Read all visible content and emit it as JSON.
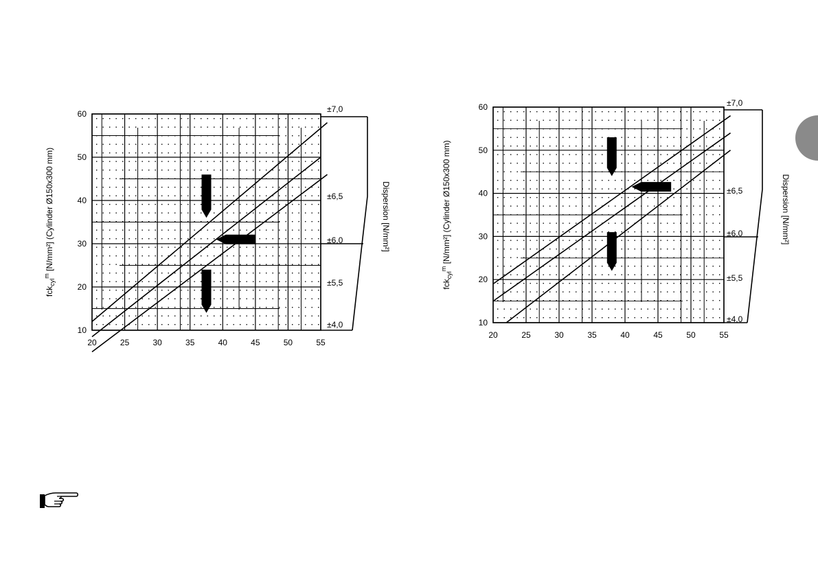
{
  "chart_data": [
    {
      "type": "line",
      "x_ticks": [
        "20",
        "25",
        "30",
        "35",
        "40",
        "45",
        "50",
        "55"
      ],
      "y_ticks": [
        "10",
        "20",
        "30",
        "40",
        "50",
        "60"
      ],
      "xlim": [
        20,
        55
      ],
      "ylim": [
        10,
        60
      ],
      "ylabel": "fckcyl m [N/mm²] (Cylinder Ø150x300 mm)",
      "ylabel_parts": {
        "main": "fck",
        "sub": "cyl",
        "sup": "m",
        "rest": " [N/mm²] (Cylinder Ø150x300 mm)"
      },
      "right_label": "Dispersion [N/mm²]",
      "dispersion_labels": [
        "±7,0",
        "±6,5",
        "±6,0",
        "±5,5",
        "±4,0"
      ],
      "series": [
        {
          "values": [
            [
              20,
              12
            ],
            [
              56,
              58
            ]
          ]
        },
        {
          "values": [
            [
              20,
              8.5
            ],
            [
              55,
              50
            ]
          ]
        },
        {
          "values": [
            [
              20,
              5
            ],
            [
              56,
              46
            ]
          ]
        }
      ],
      "markers": [
        {
          "orientation": "vertical",
          "x": 37.5,
          "y_from": 36,
          "y_to": 46
        },
        {
          "orientation": "horizontal",
          "y": 31,
          "x_from": 39,
          "x_to": 45
        },
        {
          "orientation": "vertical",
          "x": 37.5,
          "y_from": 14,
          "y_to": 24
        }
      ],
      "grid": true
    },
    {
      "type": "line",
      "x_ticks": [
        "20",
        "25",
        "30",
        "35",
        "40",
        "45",
        "50",
        "55"
      ],
      "y_ticks": [
        "10",
        "20",
        "30",
        "40",
        "50",
        "60"
      ],
      "xlim": [
        20,
        55
      ],
      "ylim": [
        10,
        60
      ],
      "ylabel": "fckcyl m [N/mm²] (Cylinder Ø150x300 mm)",
      "ylabel_parts": {
        "main": "fck",
        "sub": "cyl",
        "sup": "m",
        "rest": " [N/mm²] (Cylinder Ø150x300 mm)"
      },
      "right_label": "Dispersion [N/mm²]",
      "dispersion_labels": [
        "±7,0",
        "±6,5",
        "±6,0",
        "±5,5",
        "±4,0"
      ],
      "series": [
        {
          "values": [
            [
              20,
              19
            ],
            [
              56,
              58
            ]
          ]
        },
        {
          "values": [
            [
              20,
              15
            ],
            [
              56,
              54
            ]
          ]
        },
        {
          "values": [
            [
              22,
              10
            ],
            [
              56,
              50
            ]
          ]
        }
      ],
      "markers": [
        {
          "orientation": "vertical",
          "x": 38,
          "y_from": 44,
          "y_to": 53
        },
        {
          "orientation": "horizontal",
          "y": 41.5,
          "x_from": 41,
          "x_to": 47
        },
        {
          "orientation": "vertical",
          "x": 38,
          "y_from": 22,
          "y_to": 31
        }
      ],
      "grid": true
    }
  ],
  "decor": {
    "side_tab_color": "#8a8a8a",
    "note_icon": "pointing-hand-icon"
  }
}
